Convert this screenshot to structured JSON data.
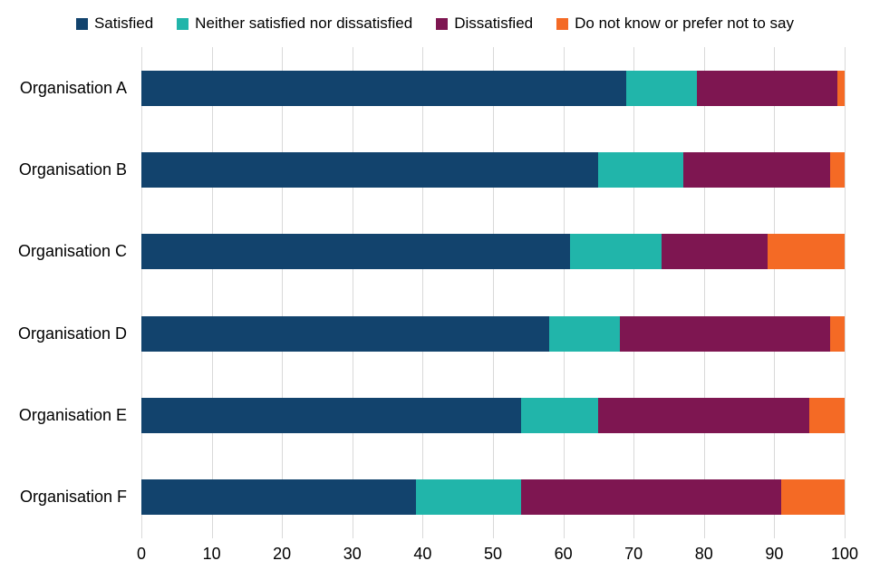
{
  "chart_data": {
    "type": "bar",
    "orientation": "horizontal",
    "stacked": true,
    "title": "",
    "xlabel": "",
    "ylabel": "",
    "categories": [
      "Organisation A",
      "Organisation B",
      "Organisation C",
      "Organisation D",
      "Organisation E",
      "Organisation F"
    ],
    "series": [
      {
        "name": "Satisfied",
        "color": "#12436D",
        "values": [
          69,
          65,
          61,
          58,
          54,
          39
        ]
      },
      {
        "name": "Neither satisfied nor dissatisfied",
        "color": "#21B5AA",
        "values": [
          10,
          12,
          13,
          10,
          11,
          15
        ]
      },
      {
        "name": "Dissatisfied",
        "color": "#7E1651",
        "values": [
          20,
          21,
          15,
          30,
          30,
          37
        ]
      },
      {
        "name": "Do not know or prefer not to say",
        "color": "#F46A25",
        "values": [
          1,
          2,
          11,
          2,
          5,
          9
        ]
      }
    ],
    "xlim": [
      0,
      100
    ],
    "xticks": [
      "0",
      "10",
      "20",
      "30",
      "40",
      "50",
      "60",
      "70",
      "80",
      "90",
      "100"
    ],
    "grid": true,
    "legend_position": "top"
  },
  "colors": {
    "background": "#FFFFFF",
    "grid": "#D9D9D9",
    "text": "#000000"
  }
}
